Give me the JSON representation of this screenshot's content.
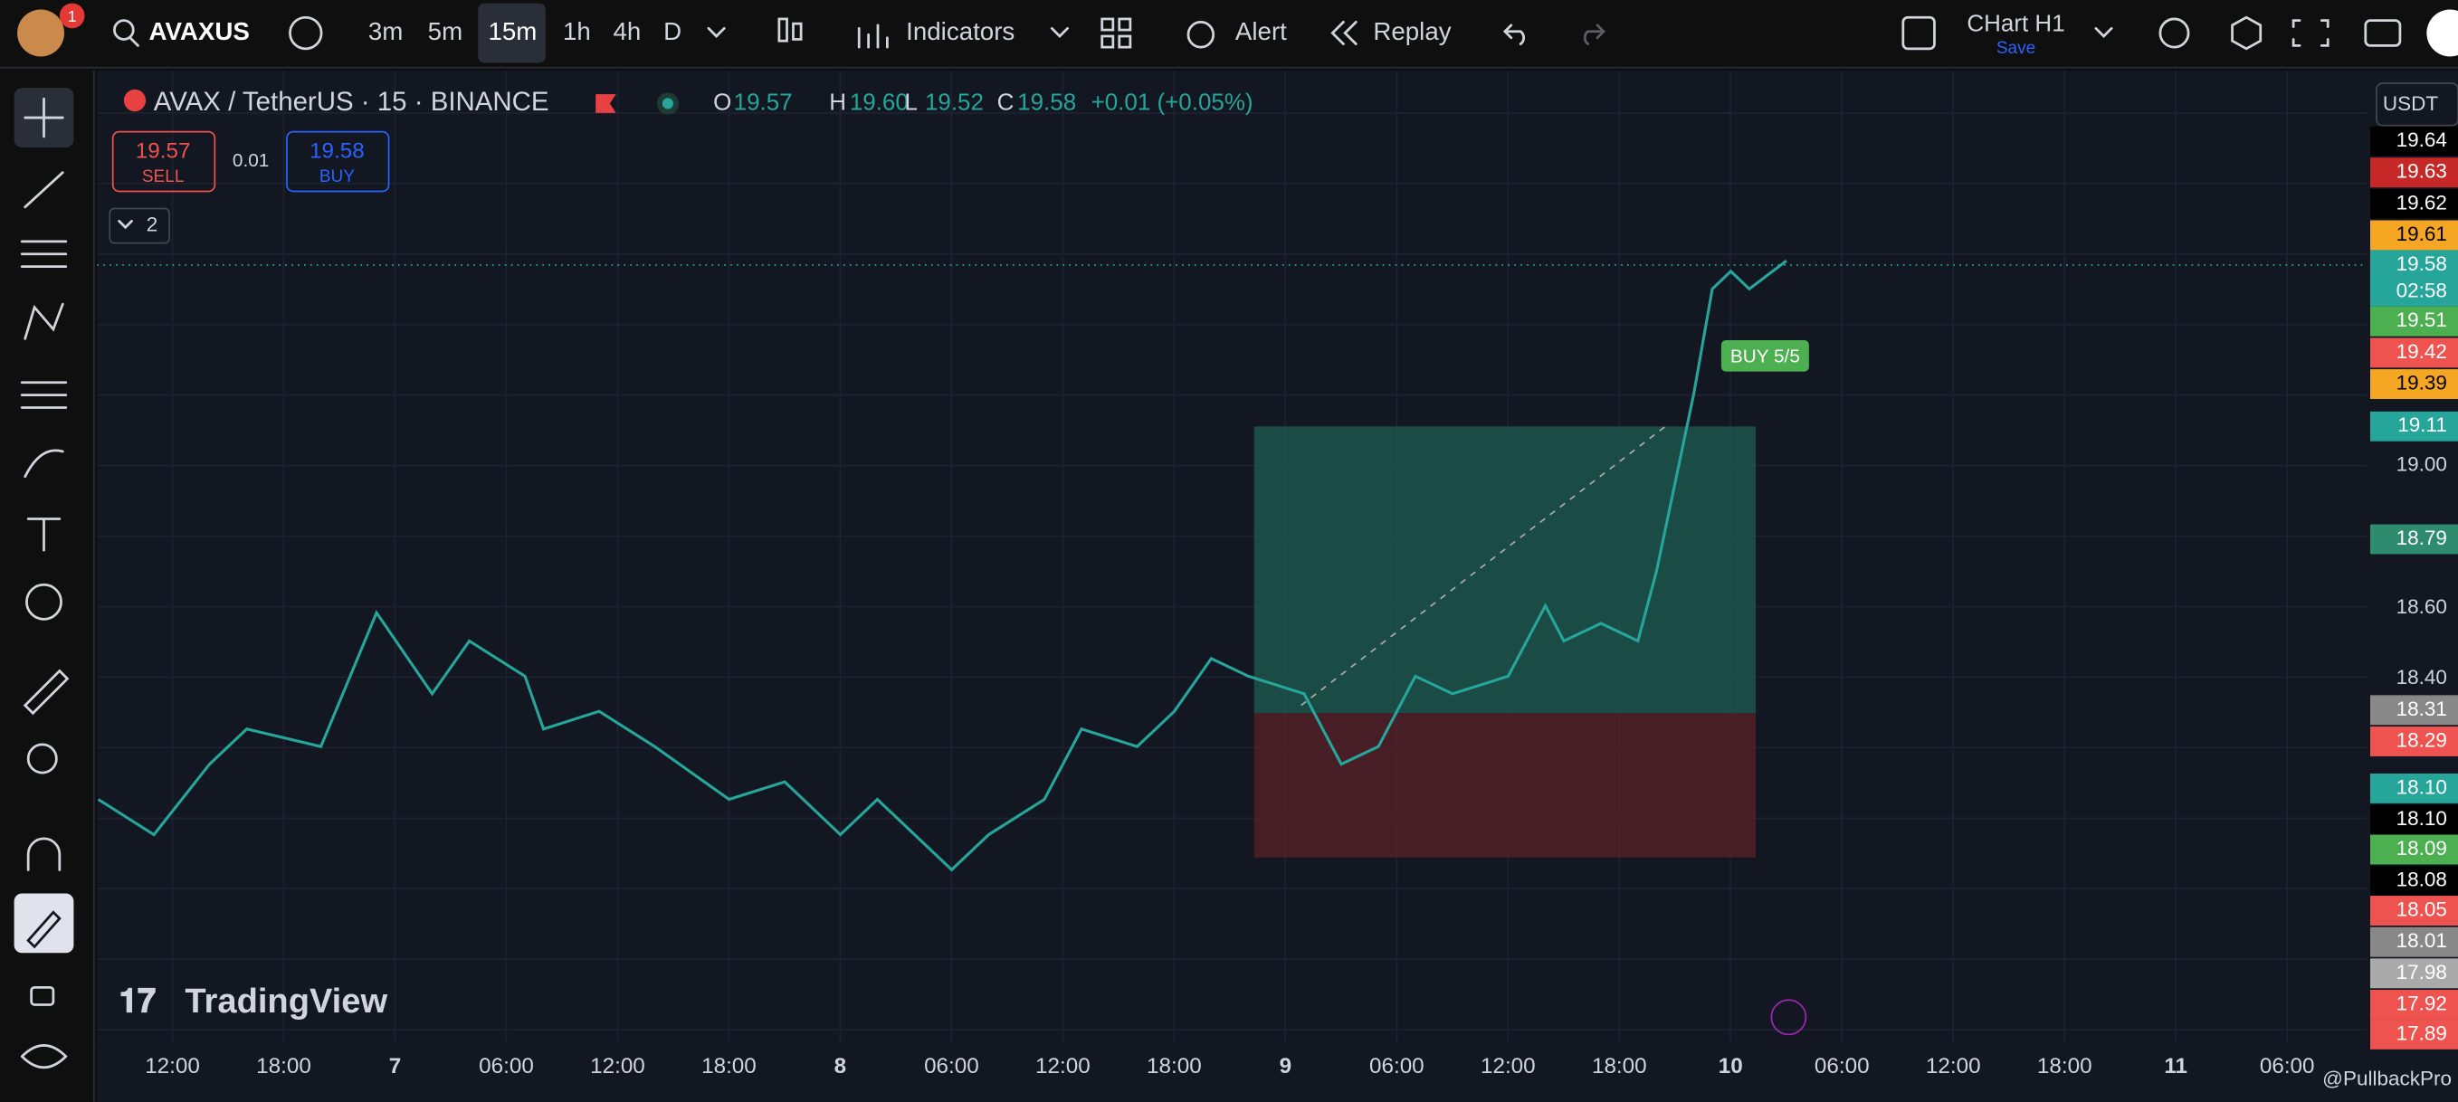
{
  "toolbar": {
    "symbol": "AVAXUS",
    "notification": "1",
    "intervals": [
      "3m",
      "5m",
      "15m",
      "1h",
      "4h",
      "D"
    ],
    "active_interval": "15m",
    "indicators": "Indicators",
    "alert": "Alert",
    "replay": "Replay",
    "layout_name": "CHart H1",
    "save": "Save"
  },
  "legend": {
    "title": "AVAX / TetherUS · 15 · BINANCE",
    "ohlc": [
      {
        "key": "O",
        "value": "19.57"
      },
      {
        "key": "H",
        "value": "19.60"
      },
      {
        "key": "L",
        "value": "19.52"
      },
      {
        "key": "C",
        "value": "19.58"
      }
    ],
    "change": "+0.01 (+0.05%)"
  },
  "trade": {
    "sell_price": "19.57",
    "sell": "SELL",
    "spread": "0.01",
    "buy_price": "19.58",
    "buy": "BUY"
  },
  "indicators_count": "2",
  "currency": "USDT",
  "price_scale": [
    {
      "label": "19.64",
      "bg": "#000000",
      "fg": "#ffffff"
    },
    {
      "label": "19.63",
      "bg": "#c62828",
      "fg": "#ffffff"
    },
    {
      "label": "19.62",
      "bg": "#000000",
      "fg": "#ffffff"
    },
    {
      "label": "19.61",
      "bg": "#f5a623",
      "fg": "#000000"
    },
    {
      "label": "19.58",
      "bg": "#26a69a",
      "fg": "#ffffff"
    },
    {
      "label": "02:58",
      "bg": "#26a69a",
      "fg": "#ffffff"
    },
    {
      "label": "19.51",
      "bg": "#4caf50",
      "fg": "#ffffff"
    },
    {
      "label": "19.42",
      "bg": "#ef5350",
      "fg": "#ffffff"
    },
    {
      "label": "19.39",
      "bg": "#f5a623",
      "fg": "#000000"
    },
    {
      "label": "19.11",
      "bg": "#26a69a",
      "fg": "#ffffff"
    },
    {
      "label": "19.00",
      "bg": "#131722",
      "fg": "#d1d4dc"
    },
    {
      "label": "18.79",
      "bg": "#2e8b6e",
      "fg": "#ffffff"
    },
    {
      "label": "18.60",
      "bg": "#131722",
      "fg": "#d1d4dc"
    },
    {
      "label": "18.40",
      "bg": "#131722",
      "fg": "#d1d4dc"
    },
    {
      "label": "18.31",
      "bg": "#888888",
      "fg": "#ffffff"
    },
    {
      "label": "18.29",
      "bg": "#ef5350",
      "fg": "#ffffff"
    },
    {
      "label": "18.10",
      "bg": "#26a69a",
      "fg": "#ffffff"
    },
    {
      "label": "18.10",
      "bg": "#000000",
      "fg": "#ffffff"
    },
    {
      "label": "18.09",
      "bg": "#4caf50",
      "fg": "#ffffff"
    },
    {
      "label": "18.08",
      "bg": "#000000",
      "fg": "#ffffff"
    },
    {
      "label": "18.05",
      "bg": "#ef5350",
      "fg": "#ffffff"
    },
    {
      "label": "18.01",
      "bg": "#888888",
      "fg": "#ffffff"
    },
    {
      "label": "17.98",
      "bg": "#aaaaaa",
      "fg": "#ffffff"
    },
    {
      "label": "17.92",
      "bg": "#ef5350",
      "fg": "#ffffff"
    },
    {
      "label": "17.89",
      "bg": "#ef5350",
      "fg": "#ffffff"
    }
  ],
  "time_axis": [
    "12:00",
    "18:00",
    "7",
    "06:00",
    "12:00",
    "18:00",
    "8",
    "06:00",
    "12:00",
    "18:00",
    "9",
    "06:00",
    "12:00",
    "18:00",
    "10",
    "06:00",
    "12:00",
    "18:00",
    "11",
    "06:00"
  ],
  "signals": [
    "BUY 5/5"
  ],
  "watermark": "TradingView",
  "credit": "@PullbackPro",
  "chart": {
    "type": "line",
    "color": "#26a69a",
    "x": [
      -4,
      -1,
      2,
      4,
      8,
      11,
      14,
      16,
      19,
      20,
      23,
      26,
      30,
      33,
      36,
      38,
      42,
      44,
      47,
      49,
      52,
      54,
      56,
      58,
      61,
      63,
      65,
      67,
      69,
      72,
      74,
      75,
      77,
      79,
      80,
      82,
      83,
      84,
      85,
      87
    ],
    "values": [
      18.05,
      17.95,
      18.15,
      18.25,
      18.2,
      18.58,
      18.35,
      18.5,
      18.4,
      18.25,
      18.3,
      18.2,
      18.05,
      18.1,
      17.95,
      18.05,
      17.85,
      17.95,
      18.05,
      18.25,
      18.2,
      18.3,
      18.45,
      18.4,
      18.35,
      18.15,
      18.2,
      18.4,
      18.35,
      18.4,
      18.6,
      18.5,
      18.55,
      18.5,
      18.7,
      19.2,
      19.5,
      19.55,
      19.5,
      19.58
    ],
    "xlim": [
      -4.06,
      118.3
    ],
    "ylim": [
      17.36,
      20.12
    ]
  }
}
